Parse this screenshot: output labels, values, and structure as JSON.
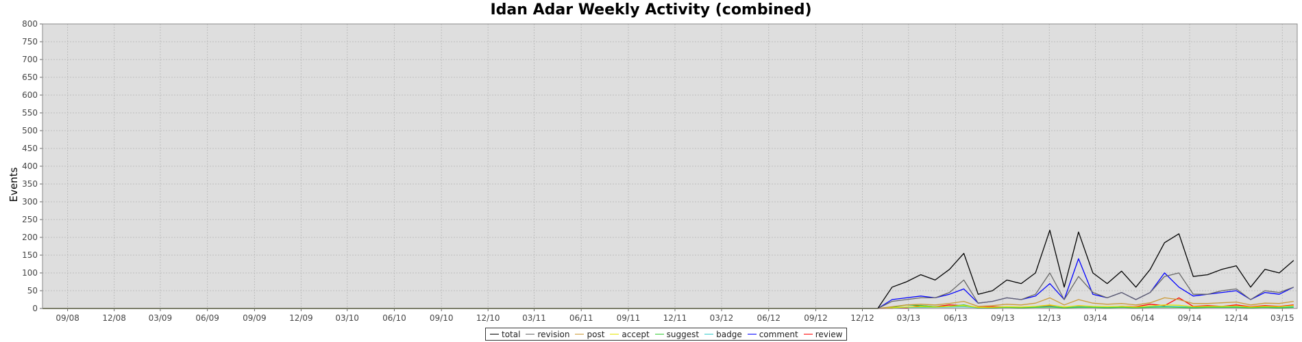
{
  "chart_data": {
    "type": "line",
    "title": "Idan Adar Weekly Activity (combined)",
    "xlabel": "",
    "ylabel": "Events",
    "ylim": [
      0,
      800
    ],
    "yticks": [
      0,
      50,
      100,
      150,
      200,
      250,
      300,
      350,
      400,
      450,
      500,
      550,
      600,
      650,
      700,
      750,
      800
    ],
    "xlim": [
      "2008-07-14",
      "2015-03-30"
    ],
    "xticks": [
      {
        "label": "09/08",
        "date": "2008-09-01"
      },
      {
        "label": "12/08",
        "date": "2008-12-01"
      },
      {
        "label": "03/09",
        "date": "2009-03-01"
      },
      {
        "label": "06/09",
        "date": "2009-06-01"
      },
      {
        "label": "09/09",
        "date": "2009-09-01"
      },
      {
        "label": "12/09",
        "date": "2009-12-01"
      },
      {
        "label": "03/10",
        "date": "2010-03-01"
      },
      {
        "label": "06/10",
        "date": "2010-06-01"
      },
      {
        "label": "09/10",
        "date": "2010-09-01"
      },
      {
        "label": "12/10",
        "date": "2010-12-01"
      },
      {
        "label": "03/11",
        "date": "2011-03-01"
      },
      {
        "label": "06/11",
        "date": "2011-06-01"
      },
      {
        "label": "09/11",
        "date": "2011-09-01"
      },
      {
        "label": "12/11",
        "date": "2011-12-01"
      },
      {
        "label": "03/12",
        "date": "2012-03-01"
      },
      {
        "label": "06/12",
        "date": "2012-06-01"
      },
      {
        "label": "09/12",
        "date": "2012-09-01"
      },
      {
        "label": "12/12",
        "date": "2012-12-01"
      },
      {
        "label": "03/13",
        "date": "2013-03-01"
      },
      {
        "label": "06/13",
        "date": "2013-06-01"
      },
      {
        "label": "09/13",
        "date": "2013-09-01"
      },
      {
        "label": "12/13",
        "date": "2013-12-01"
      },
      {
        "label": "03/14",
        "date": "2014-03-01"
      },
      {
        "label": "06/14",
        "date": "2014-06-01"
      },
      {
        "label": "09/14",
        "date": "2014-09-01"
      },
      {
        "label": "12/14",
        "date": "2014-12-01"
      },
      {
        "label": "03/15",
        "date": "2015-03-01"
      }
    ],
    "grid": true,
    "legend_position": "bottom-center",
    "x": [
      "2012-12-31",
      "2013-01-28",
      "2013-02-25",
      "2013-03-25",
      "2013-04-22",
      "2013-05-20",
      "2013-06-17",
      "2013-07-15",
      "2013-08-12",
      "2013-09-09",
      "2013-10-07",
      "2013-11-04",
      "2013-12-02",
      "2013-12-30",
      "2014-01-27",
      "2014-02-24",
      "2014-03-24",
      "2014-04-21",
      "2014-05-19",
      "2014-06-16",
      "2014-07-14",
      "2014-08-11",
      "2014-09-08",
      "2014-10-06",
      "2014-11-03",
      "2014-12-01",
      "2014-12-29",
      "2015-01-26",
      "2015-02-23",
      "2015-03-23"
    ],
    "series": [
      {
        "name": "total",
        "color": "#000000",
        "values": [
          0,
          60,
          75,
          95,
          80,
          110,
          155,
          40,
          50,
          80,
          70,
          100,
          220,
          60,
          215,
          100,
          70,
          105,
          60,
          110,
          185,
          210,
          90,
          95,
          110,
          120,
          60,
          110,
          100,
          135
        ]
      },
      {
        "name": "revision",
        "color": "#666666",
        "values": [
          0,
          20,
          25,
          30,
          30,
          45,
          80,
          15,
          20,
          30,
          25,
          40,
          100,
          25,
          90,
          45,
          30,
          45,
          25,
          45,
          90,
          100,
          40,
          40,
          50,
          55,
          25,
          50,
          45,
          60
        ]
      },
      {
        "name": "post",
        "color": "#cc9933",
        "values": [
          0,
          5,
          10,
          12,
          10,
          14,
          20,
          6,
          8,
          12,
          10,
          15,
          30,
          10,
          25,
          15,
          12,
          14,
          10,
          16,
          30,
          25,
          14,
          14,
          16,
          18,
          10,
          15,
          14,
          20
        ]
      },
      {
        "name": "accept",
        "color": "#e6e600",
        "values": [
          0,
          2,
          4,
          5,
          4,
          6,
          8,
          3,
          3,
          5,
          4,
          6,
          10,
          4,
          8,
          6,
          5,
          6,
          4,
          7,
          10,
          9,
          5,
          6,
          6,
          7,
          4,
          6,
          5,
          8
        ]
      },
      {
        "name": "suggest",
        "color": "#33cc33",
        "values": [
          0,
          3,
          10,
          8,
          5,
          6,
          10,
          2,
          2,
          3,
          2,
          3,
          4,
          2,
          3,
          3,
          2,
          3,
          2,
          3,
          4,
          3,
          2,
          3,
          3,
          3,
          2,
          3,
          2,
          3
        ]
      },
      {
        "name": "badge",
        "color": "#33cccc",
        "values": [
          0,
          2,
          3,
          3,
          3,
          4,
          5,
          2,
          3,
          4,
          3,
          4,
          6,
          3,
          5,
          4,
          4,
          4,
          3,
          5,
          6,
          5,
          4,
          4,
          4,
          5,
          3,
          4,
          4,
          5
        ]
      },
      {
        "name": "comment",
        "color": "#0000ff",
        "values": [
          0,
          25,
          30,
          35,
          30,
          40,
          55,
          15,
          20,
          30,
          25,
          35,
          70,
          25,
          140,
          40,
          30,
          45,
          25,
          45,
          100,
          60,
          35,
          40,
          45,
          50,
          25,
          45,
          40,
          60
        ]
      },
      {
        "name": "review",
        "color": "#ff0000",
        "values": [
          0,
          0,
          2,
          8,
          5,
          10,
          8,
          3,
          5,
          4,
          3,
          5,
          8,
          4,
          6,
          5,
          4,
          6,
          5,
          12,
          8,
          30,
          6,
          8,
          6,
          10,
          5,
          8,
          6,
          10
        ]
      }
    ]
  }
}
